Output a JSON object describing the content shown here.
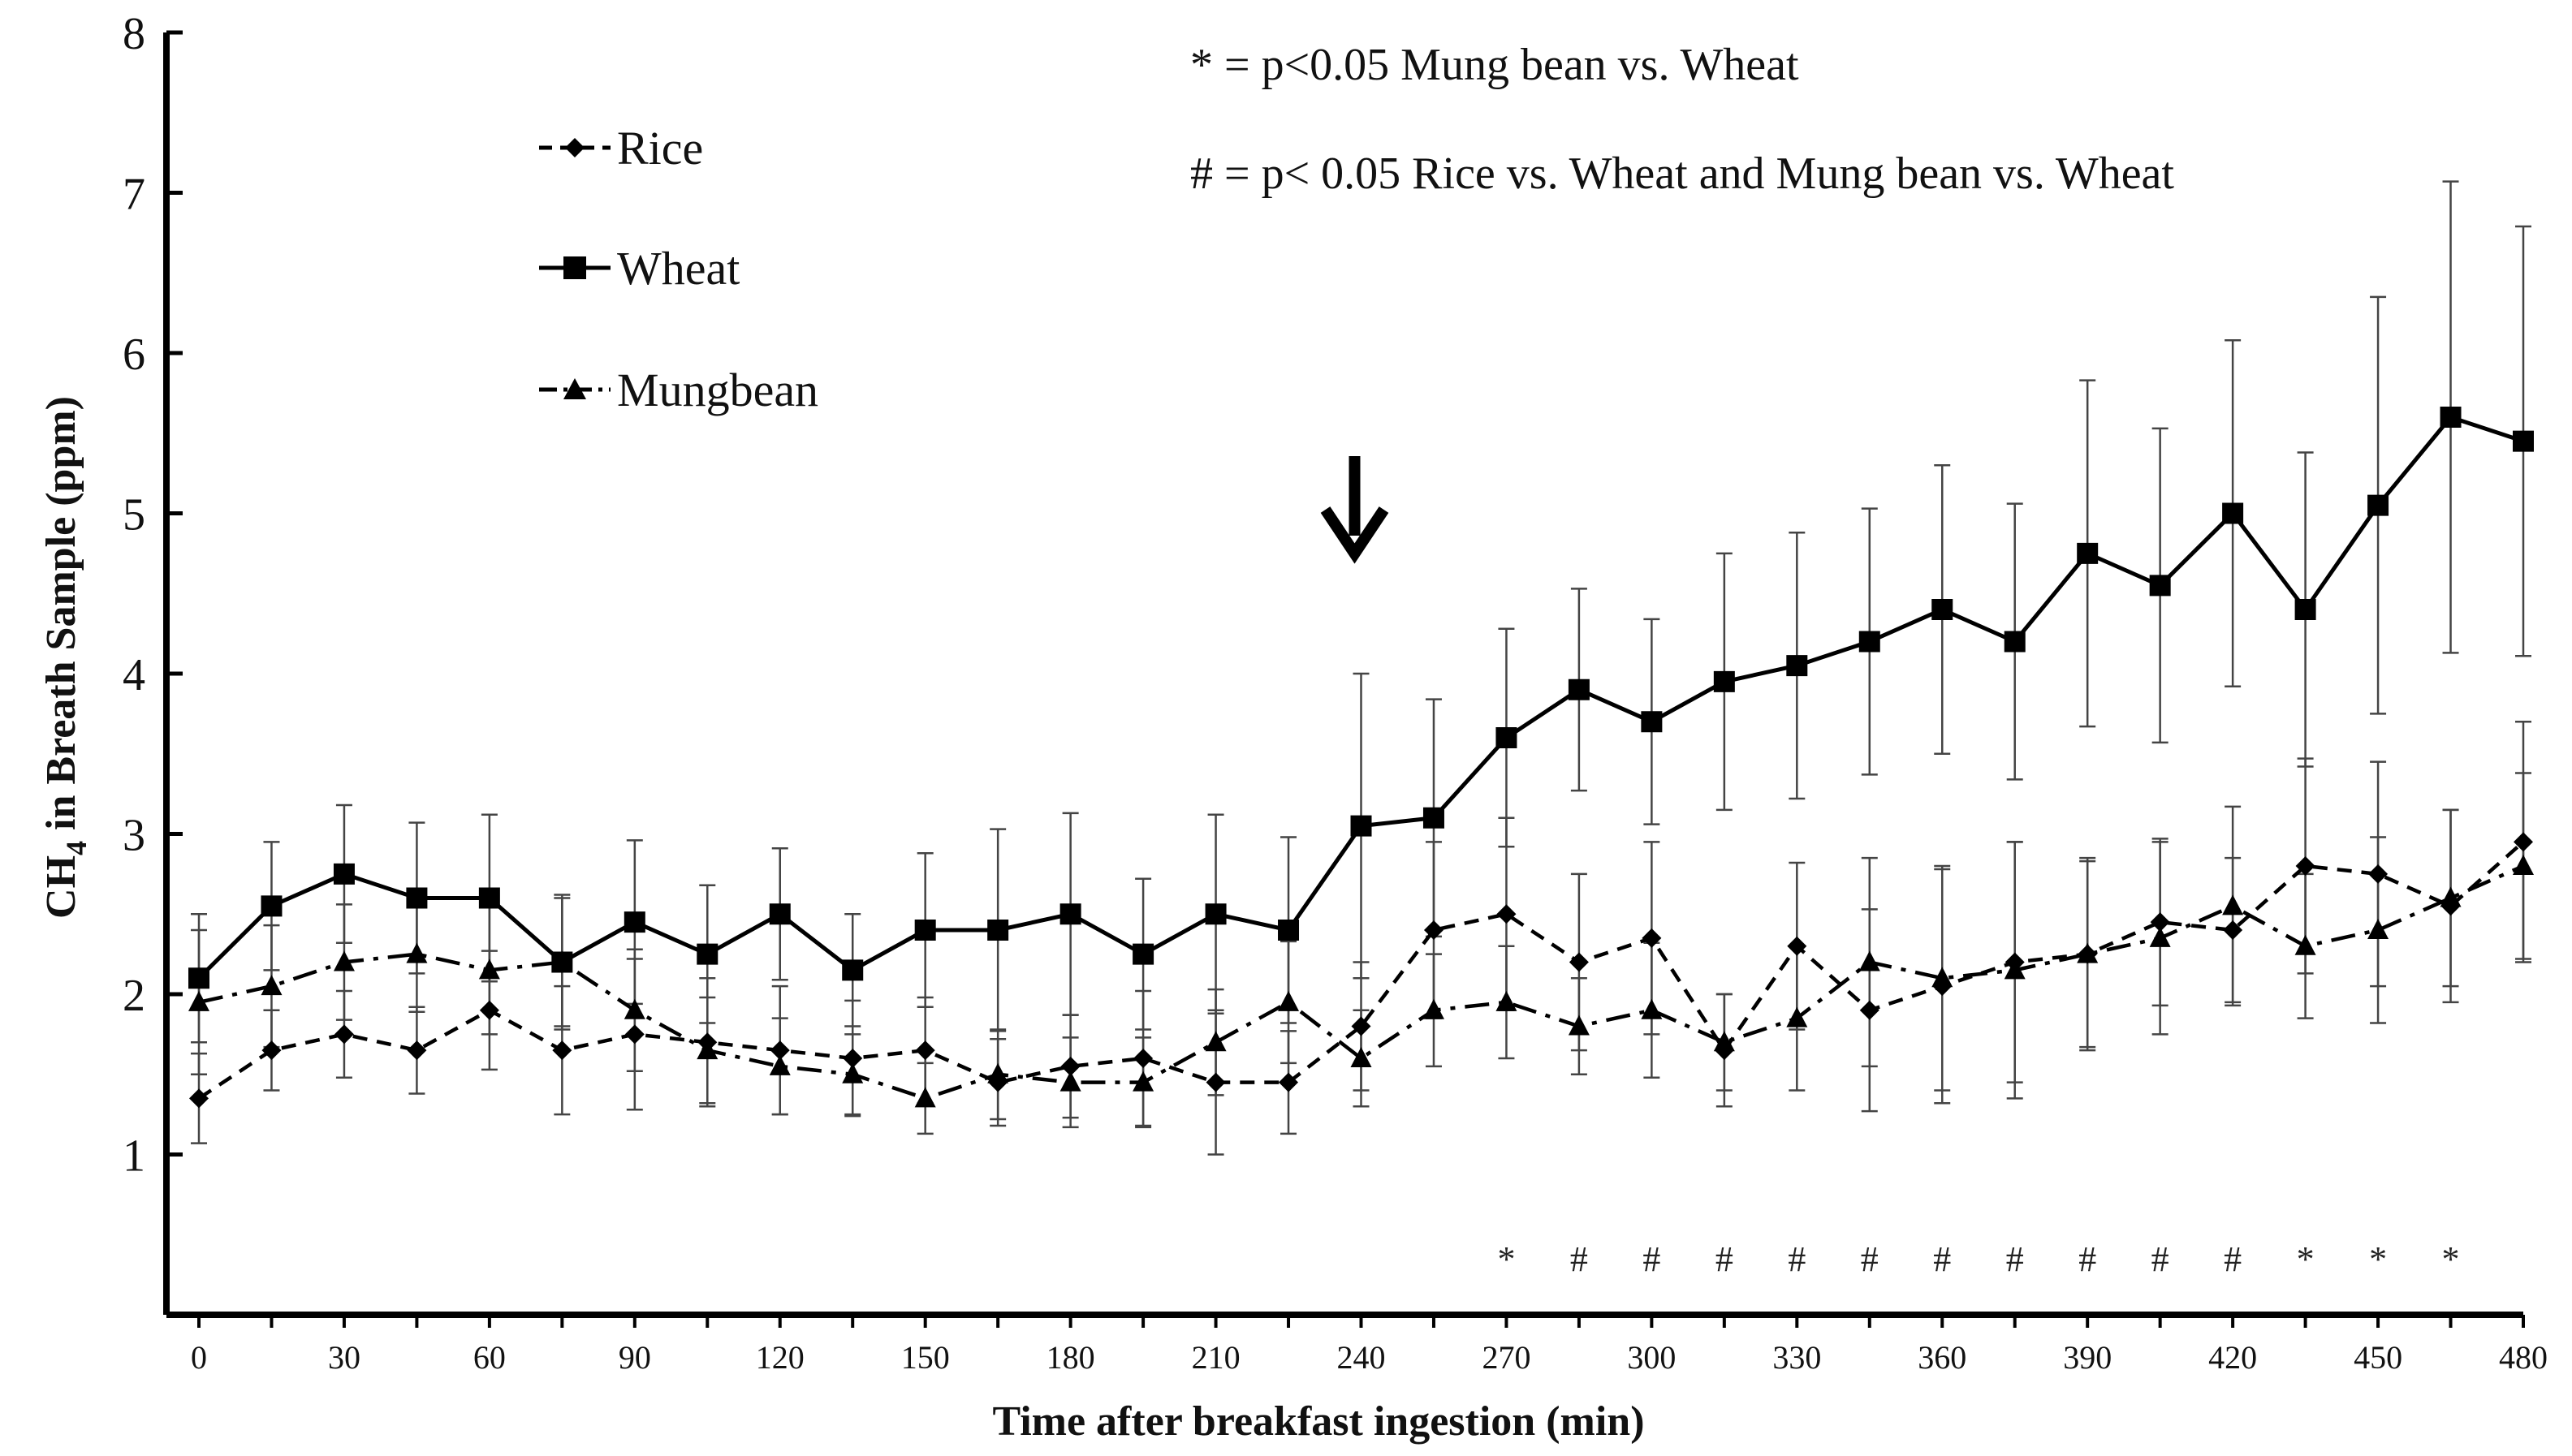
{
  "chart_data": {
    "type": "line",
    "xlabel": "Time after breakfast ingestion (min)",
    "ylabel_main": "CH",
    "ylabel_sub": "4",
    "ylabel_rest": " in Breath Sample (ppm)",
    "xlim": [
      0,
      480
    ],
    "ylim": [
      0,
      8
    ],
    "x_ticks": [
      0,
      30,
      60,
      90,
      120,
      150,
      180,
      210,
      240,
      270,
      300,
      330,
      360,
      390,
      420,
      450,
      480
    ],
    "y_ticks": [
      1,
      2,
      3,
      4,
      5,
      6,
      7,
      8
    ],
    "x": [
      0,
      15,
      30,
      45,
      60,
      75,
      90,
      105,
      120,
      135,
      150,
      165,
      180,
      195,
      210,
      225,
      240,
      255,
      270,
      285,
      300,
      315,
      330,
      345,
      360,
      375,
      390,
      405,
      420,
      435,
      450,
      465,
      480
    ],
    "series": [
      {
        "name": "Rice",
        "marker": "diamond",
        "dash": "short-dash",
        "values": [
          1.35,
          1.65,
          1.75,
          1.65,
          1.9,
          1.65,
          1.75,
          1.7,
          1.65,
          1.6,
          1.65,
          1.45,
          1.55,
          1.6,
          1.45,
          1.45,
          1.8,
          2.4,
          2.5,
          2.2,
          2.35,
          1.65,
          2.3,
          1.9,
          2.05,
          2.2,
          2.25,
          2.45,
          2.4,
          2.8,
          2.75,
          2.55,
          2.95
        ],
        "errors": [
          0.28,
          0.25,
          0.27,
          0.27,
          0.37,
          0.4,
          0.47,
          0.4,
          0.4,
          0.36,
          0.33,
          0.27,
          0.32,
          0.42,
          0.45,
          0.32,
          0.4,
          0.55,
          0.6,
          0.55,
          0.6,
          0.35,
          0.52,
          0.63,
          0.73,
          0.75,
          0.58,
          0.52,
          0.45,
          0.67,
          0.7,
          0.6,
          0.75
        ]
      },
      {
        "name": "Wheat",
        "marker": "square",
        "dash": "solid",
        "values": [
          2.1,
          2.55,
          2.75,
          2.6,
          2.6,
          2.2,
          2.45,
          2.25,
          2.5,
          2.15,
          2.4,
          2.4,
          2.5,
          2.25,
          2.5,
          2.4,
          3.05,
          3.1,
          3.6,
          3.9,
          3.7,
          3.95,
          4.05,
          4.2,
          4.4,
          4.2,
          4.75,
          4.55,
          5.0,
          4.4,
          5.05,
          5.6,
          5.45
        ],
        "errors": [
          0.4,
          0.4,
          0.43,
          0.47,
          0.52,
          0.42,
          0.51,
          0.43,
          0.41,
          0.35,
          0.48,
          0.63,
          0.63,
          0.47,
          0.62,
          0.58,
          0.95,
          0.74,
          0.68,
          0.63,
          0.64,
          0.8,
          0.83,
          0.83,
          0.9,
          0.86,
          1.08,
          0.98,
          1.08,
          0.98,
          1.3,
          1.47,
          1.34
        ]
      },
      {
        "name": "Mungbean",
        "marker": "triangle",
        "dash": "dash-dot",
        "values": [
          1.95,
          2.05,
          2.2,
          2.25,
          2.15,
          2.2,
          1.9,
          1.65,
          1.55,
          1.5,
          1.35,
          1.5,
          1.45,
          1.45,
          1.7,
          1.95,
          1.6,
          1.9,
          1.95,
          1.8,
          1.9,
          1.7,
          1.85,
          2.2,
          2.1,
          2.15,
          2.25,
          2.35,
          2.55,
          2.3,
          2.4,
          2.6,
          2.8
        ],
        "errors": [
          0.45,
          0.38,
          0.36,
          0.36,
          0.4,
          0.4,
          0.38,
          0.33,
          0.3,
          0.25,
          0.22,
          0.28,
          0.28,
          0.28,
          0.33,
          0.38,
          0.3,
          0.35,
          0.35,
          0.3,
          0.42,
          0.3,
          0.45,
          0.65,
          0.7,
          0.8,
          0.6,
          0.6,
          0.62,
          0.45,
          0.58,
          0.55,
          0.58
        ]
      }
    ],
    "significance_markers": [
      {
        "x": 270,
        "symbol": "*"
      },
      {
        "x": 285,
        "symbol": "#"
      },
      {
        "x": 300,
        "symbol": "#"
      },
      {
        "x": 315,
        "symbol": "#"
      },
      {
        "x": 330,
        "symbol": "#"
      },
      {
        "x": 345,
        "symbol": "#"
      },
      {
        "x": 360,
        "symbol": "#"
      },
      {
        "x": 375,
        "symbol": "#"
      },
      {
        "x": 390,
        "symbol": "#"
      },
      {
        "x": 405,
        "symbol": "#"
      },
      {
        "x": 420,
        "symbol": "#"
      },
      {
        "x": 435,
        "symbol": "*"
      },
      {
        "x": 450,
        "symbol": "*"
      },
      {
        "x": 465,
        "symbol": "*"
      }
    ],
    "arrow_at_x": 240,
    "annotations": [
      "* = p<0.05 Mung bean vs. Wheat",
      "# = p< 0.05 Rice vs. Wheat and Mung bean vs. Wheat"
    ],
    "legend": [
      "Rice",
      "Wheat",
      "Mungbean"
    ],
    "legend_position": "top-left",
    "grid": false
  }
}
